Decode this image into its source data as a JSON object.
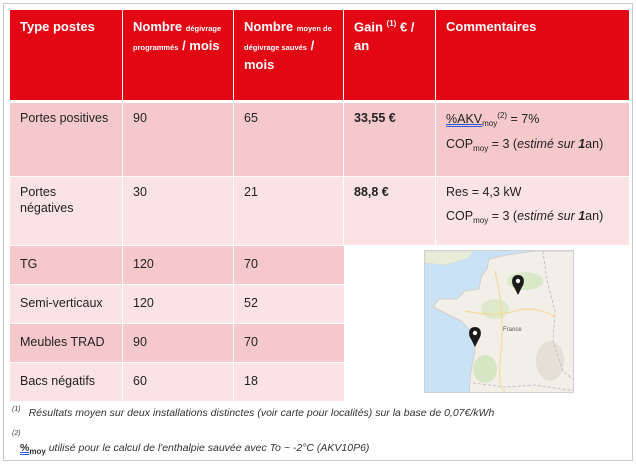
{
  "header": {
    "col1": "Type postes",
    "col2_main": "Nombre",
    "col2_small": "dégivrage programmés",
    "col2_tail": "/ mois",
    "col3_main": "Nombre",
    "col3_small": "moyen de dégivrage sauvés",
    "col3_tail": "/ mois",
    "col4_main": "Gain",
    "col4_sup": "(1)",
    "col4_tail": "€ / an",
    "col5": "Commentaires"
  },
  "rows": [
    {
      "type": "Portes positives",
      "prog": "90",
      "saved": "65",
      "gain": "33,55 €",
      "c1_pre": "%AKV",
      "c1_sub": "moy",
      "c1_sup": "(2)",
      "c1_post": "= 7%",
      "c2_pre": "COP",
      "c2_sub": "moy",
      "c2_mid": "= 3 (",
      "c2_it": "estimé sur",
      "c2_b": "1",
      "c2_end": "an)"
    },
    {
      "type": "Portes négatives",
      "prog": "30",
      "saved": "21",
      "gain": "88,8 €",
      "c1_text": "Res = 4,3 kW",
      "c2_pre": "COP",
      "c2_sub": "moy",
      "c2_mid": "= 3 (",
      "c2_it": "estimé sur",
      "c2_b": "1",
      "c2_end": "an)"
    },
    {
      "type": "TG",
      "prog": "120",
      "saved": "70"
    },
    {
      "type": "Semi-verticaux",
      "prog": "120",
      "saved": "52"
    },
    {
      "type": "Meubles TRAD",
      "prog": "90",
      "saved": "70"
    },
    {
      "type": "Bacs négatifs",
      "prog": "60",
      "saved": "18"
    }
  ],
  "map": {
    "label": "France",
    "marker_color": "#1a1a1a",
    "sea_color": "#c9e2f5",
    "land_color": "#f2efe9"
  },
  "notes": {
    "n1_mark": "(1)",
    "n1_text": "Résultats moyen sur deux installations distinctes (voir carte pour localités) sur la base de 0,07€/kWh",
    "n2_mark": "(2)",
    "n2_pct": "%",
    "n2_sub": "moy",
    "n2_text": "utilisé pour le calcul de l'enthalpie sauvée avec To ~ -2°C (AKV10P6)"
  },
  "colors": {
    "header_bg": "#e30613",
    "row_dark": "#f5c9cc",
    "row_light": "#fbe3e5"
  }
}
